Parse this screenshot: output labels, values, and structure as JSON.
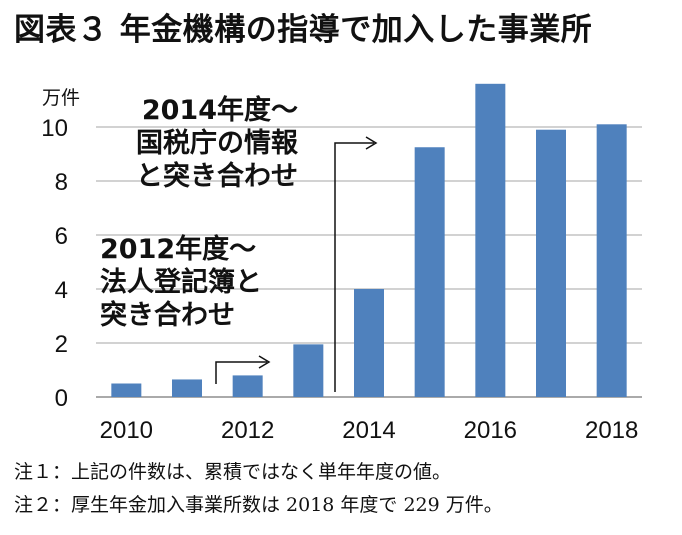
{
  "title": "図表３ 年金機構の指導で加入した事業所",
  "unit_label": "万件",
  "annotations": {
    "a2014": [
      "2014年度～",
      "国税庁の情報",
      "と突き合わせ"
    ],
    "a2012": [
      "2012年度～",
      "法人登記簿と",
      "突き合わせ"
    ]
  },
  "notes": [
    "注１：上記の件数は、累積ではなく単年年度の値。",
    "注２：厚生年金加入事業所数は 2018 年度で 229 万件。"
  ],
  "chart_data": {
    "type": "bar",
    "categories": [
      "2010",
      "2011",
      "2012",
      "2013",
      "2014",
      "2015",
      "2016",
      "2017",
      "2018"
    ],
    "values": [
      0.5,
      0.65,
      0.8,
      1.95,
      4.0,
      9.25,
      11.6,
      9.9,
      10.1
    ],
    "x_tick_labels": [
      "2010",
      "2012",
      "2014",
      "2016",
      "2018"
    ],
    "y_ticks": [
      0,
      2,
      4,
      6,
      8,
      10
    ],
    "ylim": [
      0,
      11.6
    ],
    "bar_color": "#4f81bd",
    "grid": true,
    "ylabel": "万件"
  }
}
